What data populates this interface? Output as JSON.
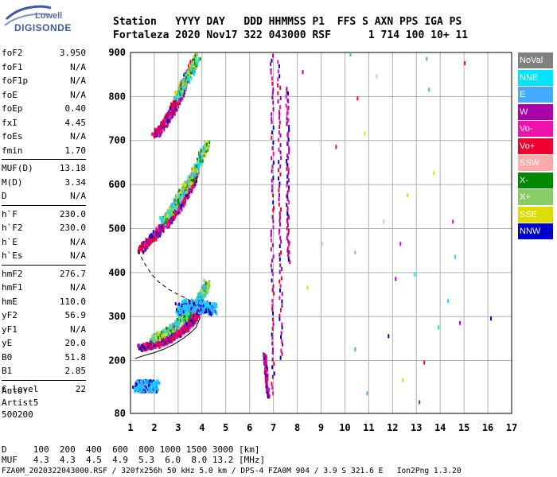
{
  "logo": {
    "line1": "Lowell",
    "line2": "DIGISONDE"
  },
  "header": {
    "line1": "Station   YYYY DAY   DDD HHMMSS P1  FFS S AXN PPS IGA PS",
    "line2": "Fortaleza 2020 Nov17 322 043000 RSF      1 714 100 10+ 11"
  },
  "parameters": [
    {
      "name": "foF2",
      "value": "3.950"
    },
    {
      "name": "foF1",
      "value": "N/A"
    },
    {
      "name": "foF1p",
      "value": "N/A"
    },
    {
      "name": "foE",
      "value": "N/A"
    },
    {
      "name": "foEp",
      "value": "0.40"
    },
    {
      "name": "fxI",
      "value": "4.45"
    },
    {
      "name": "foEs",
      "value": "N/A"
    },
    {
      "name": "fmin",
      "value": "1.70"
    },
    {
      "name": "MUF(D)",
      "value": "13.18",
      "sep_before": true
    },
    {
      "name": "M(D)",
      "value": "3.34"
    },
    {
      "name": "D",
      "value": "N/A"
    },
    {
      "name": "h`F",
      "value": "230.0",
      "sep_before": true
    },
    {
      "name": "h`F2",
      "value": "230.0"
    },
    {
      "name": "h`E",
      "value": "N/A"
    },
    {
      "name": "h`Es",
      "value": "N/A"
    },
    {
      "name": "hmF2",
      "value": "276.7",
      "sep_before": true
    },
    {
      "name": "hmF1",
      "value": "N/A"
    },
    {
      "name": "hmE",
      "value": "110.0"
    },
    {
      "name": "yF2",
      "value": "56.9"
    },
    {
      "name": "yF1",
      "value": "N/A"
    },
    {
      "name": "yE",
      "value": "20.0"
    },
    {
      "name": "B0",
      "value": "51.8"
    },
    {
      "name": "B1",
      "value": "2.85"
    },
    {
      "name": "C-level",
      "value": "22",
      "sep_before": true
    }
  ],
  "autoscale": {
    "line1": "Auto:",
    "line2": "Artist5",
    "line3": "500200"
  },
  "legend": [
    {
      "label": "NoVal",
      "color": "#808080"
    },
    {
      "label": "NNE",
      "color": "#00e5ff"
    },
    {
      "label": "E",
      "color": "#44aaff"
    },
    {
      "label": "W",
      "color": "#aa00aa"
    },
    {
      "label": "Vo-",
      "color": "#ee11aa"
    },
    {
      "label": "Vo+",
      "color": "#ee0033"
    },
    {
      "label": "SSW",
      "color": "#ffaaaa"
    },
    {
      "label": "X-",
      "color": "#008800"
    },
    {
      "label": "X+",
      "color": "#88cc66"
    },
    {
      "label": "SSE",
      "color": "#dddd00"
    },
    {
      "label": "NNW",
      "color": "#0000cc"
    }
  ],
  "footer": {
    "dist_row": "D     100  200  400  600  800 1000 1500 3000 [km]",
    "muf_row": "MUF   4.3  4.3  4.5  4.9  5.3  6.0  8.0 13.2 [MHz]",
    "file_row": "FZA0M_2020322043000.RSF / 320fx256h 50 kHz 5.0 km / DPS-4 FZA0M 904 / 3.9 S 321.6 E   Ion2Png 1.3.20"
  },
  "chart_data": {
    "type": "scatter",
    "xlim": [
      1,
      17
    ],
    "ylim": [
      80,
      900
    ],
    "xticks": [
      1,
      2,
      3,
      4,
      5,
      6,
      7,
      8,
      9,
      10,
      11,
      12,
      13,
      14,
      15,
      16,
      17
    ],
    "yticks": [
      80,
      200,
      300,
      400,
      500,
      600,
      700,
      800,
      900
    ],
    "grid": true,
    "xlabel": "",
    "ylabel": "",
    "traces": [
      {
        "mode": "o",
        "points": [
          [
            1.4,
            232
          ],
          [
            1.7,
            236
          ],
          [
            2.0,
            240
          ],
          [
            2.3,
            246
          ],
          [
            2.6,
            253
          ],
          [
            2.9,
            262
          ],
          [
            3.2,
            274
          ],
          [
            3.5,
            290
          ],
          [
            3.7,
            305
          ],
          [
            3.85,
            320
          ]
        ]
      },
      {
        "mode": "x",
        "points": [
          [
            1.9,
            252
          ],
          [
            2.3,
            262
          ],
          [
            2.7,
            275
          ],
          [
            3.0,
            290
          ],
          [
            3.3,
            305
          ],
          [
            3.6,
            325
          ],
          [
            3.85,
            340
          ],
          [
            4.05,
            360
          ],
          [
            4.2,
            380
          ]
        ]
      },
      {
        "mode": "o",
        "points": [
          [
            1.4,
            455
          ],
          [
            1.7,
            472
          ],
          [
            2.0,
            488
          ],
          [
            2.3,
            505
          ],
          [
            2.6,
            522
          ],
          [
            2.9,
            545
          ],
          [
            3.2,
            570
          ],
          [
            3.5,
            600
          ],
          [
            3.7,
            625
          ]
        ]
      },
      {
        "mode": "x",
        "points": [
          [
            2.3,
            520
          ],
          [
            2.7,
            545
          ],
          [
            3.0,
            572
          ],
          [
            3.3,
            598
          ],
          [
            3.6,
            625
          ],
          [
            3.9,
            660
          ],
          [
            4.2,
            700
          ]
        ]
      },
      {
        "mode": "o",
        "points": [
          [
            2.0,
            715
          ],
          [
            2.3,
            735
          ],
          [
            2.6,
            760
          ],
          [
            2.9,
            790
          ],
          [
            3.1,
            815
          ],
          [
            3.3,
            845
          ],
          [
            3.6,
            880
          ]
        ]
      },
      {
        "mode": "x",
        "points": [
          [
            2.9,
            800
          ],
          [
            3.2,
            830
          ],
          [
            3.5,
            860
          ],
          [
            3.8,
            895
          ]
        ]
      },
      {
        "mode": "spread",
        "points": [
          [
            3.0,
            320
          ],
          [
            3.4,
            330
          ],
          [
            3.8,
            325
          ],
          [
            4.2,
            325
          ],
          [
            4.5,
            320
          ]
        ]
      },
      {
        "mode": "spread",
        "points": [
          [
            1.2,
            145
          ],
          [
            1.5,
            145
          ],
          [
            1.8,
            145
          ],
          [
            2.1,
            145
          ]
        ]
      },
      {
        "mode": "vline",
        "points": [
          [
            6.9,
            900
          ],
          [
            6.95,
            120
          ]
        ]
      },
      {
        "mode": "vline",
        "points": [
          [
            7.2,
            880
          ],
          [
            7.3,
            200
          ]
        ]
      },
      {
        "mode": "vline",
        "points": [
          [
            7.55,
            820
          ],
          [
            7.6,
            420
          ]
        ]
      },
      {
        "mode": "vline",
        "points": [
          [
            6.6,
            220
          ],
          [
            6.75,
            120
          ]
        ]
      }
    ],
    "curves": {
      "dashed": [
        [
          1.3,
          450
        ],
        [
          1.6,
          420
        ],
        [
          1.9,
          395
        ],
        [
          2.2,
          378
        ],
        [
          2.6,
          362
        ],
        [
          3.0,
          350
        ],
        [
          3.4,
          340
        ],
        [
          3.75,
          325
        ],
        [
          3.95,
          305
        ]
      ],
      "solid": [
        [
          1.2,
          205
        ],
        [
          1.6,
          212
        ],
        [
          2.0,
          218
        ],
        [
          2.4,
          226
        ],
        [
          2.8,
          236
        ],
        [
          3.2,
          250
        ],
        [
          3.5,
          262
        ],
        [
          3.75,
          275
        ],
        [
          3.9,
          295
        ]
      ]
    },
    "scattered_points": [
      [
        8.2,
        860
      ],
      [
        8.4,
        370
      ],
      [
        9.0,
        470
      ],
      [
        9.6,
        690
      ],
      [
        10.4,
        450
      ],
      [
        10.4,
        230
      ],
      [
        10.5,
        800
      ],
      [
        10.8,
        720
      ],
      [
        10.9,
        130
      ],
      [
        11.3,
        850
      ],
      [
        11.6,
        520
      ],
      [
        11.8,
        260
      ],
      [
        12.1,
        390
      ],
      [
        12.3,
        470
      ],
      [
        12.6,
        580
      ],
      [
        12.9,
        400
      ],
      [
        13.1,
        110
      ],
      [
        13.3,
        200
      ],
      [
        13.4,
        890
      ],
      [
        13.7,
        630
      ],
      [
        13.9,
        280
      ],
      [
        14.3,
        340
      ],
      [
        14.5,
        520
      ],
      [
        14.6,
        440
      ],
      [
        14.8,
        290
      ],
      [
        15.0,
        880
      ],
      [
        16.1,
        300
      ],
      [
        13.5,
        820
      ],
      [
        12.4,
        160
      ],
      [
        10.2,
        900
      ]
    ]
  }
}
